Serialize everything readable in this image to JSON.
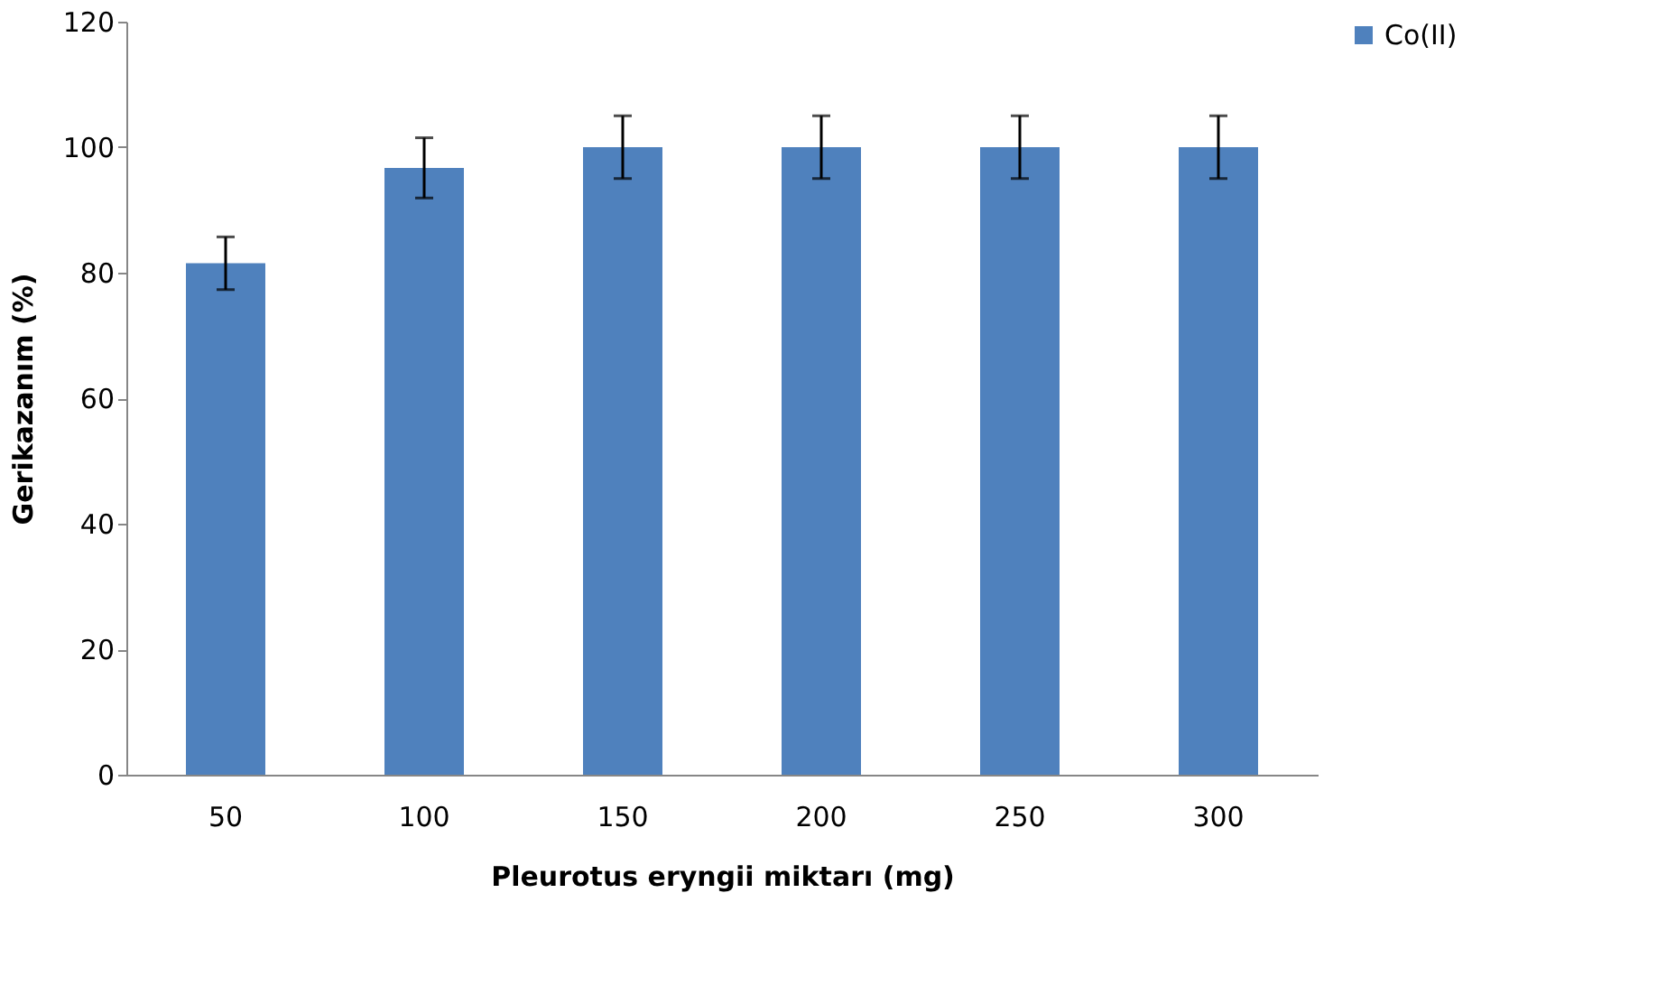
{
  "chart_data": {
    "type": "bar",
    "xlabel": "Pleurotus eryngii miktarı (mg)",
    "ylabel": "Gerikazanım (%)",
    "categories": [
      "50",
      "100",
      "150",
      "200",
      "250",
      "300"
    ],
    "series": [
      {
        "name": "Co(II)",
        "color": "#4f81bd",
        "values": [
          81.5,
          96.7,
          100,
          100,
          100,
          100
        ],
        "errors": [
          4.2,
          4.8,
          5,
          5,
          5,
          5
        ]
      }
    ],
    "ylim": [
      0,
      120
    ],
    "yticks": [
      0,
      20,
      40,
      60,
      80,
      100,
      120
    ],
    "grid": false,
    "legend": "right"
  }
}
